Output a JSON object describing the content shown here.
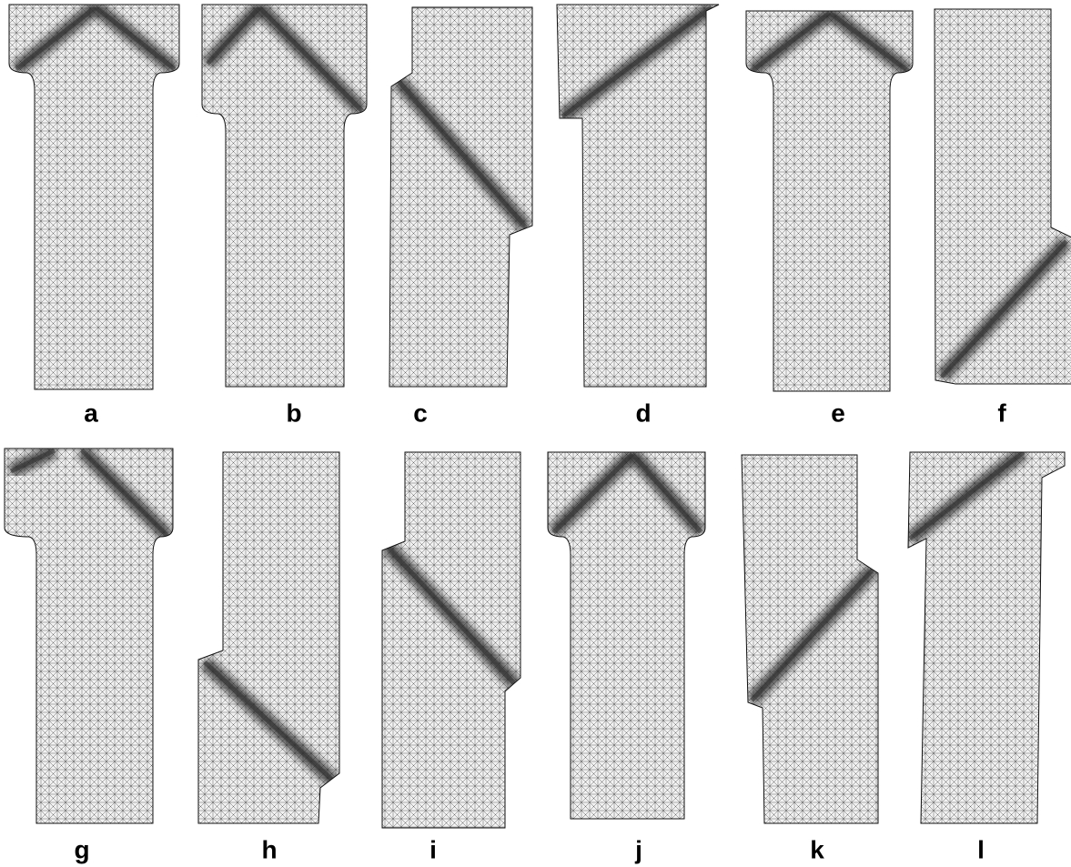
{
  "panels": [
    {
      "label": "a"
    },
    {
      "label": "b"
    },
    {
      "label": "c"
    },
    {
      "label": "d"
    },
    {
      "label": "e"
    },
    {
      "label": "f"
    },
    {
      "label": "g"
    },
    {
      "label": "h"
    },
    {
      "label": "i"
    },
    {
      "label": "j"
    },
    {
      "label": "k"
    },
    {
      "label": "l"
    }
  ]
}
